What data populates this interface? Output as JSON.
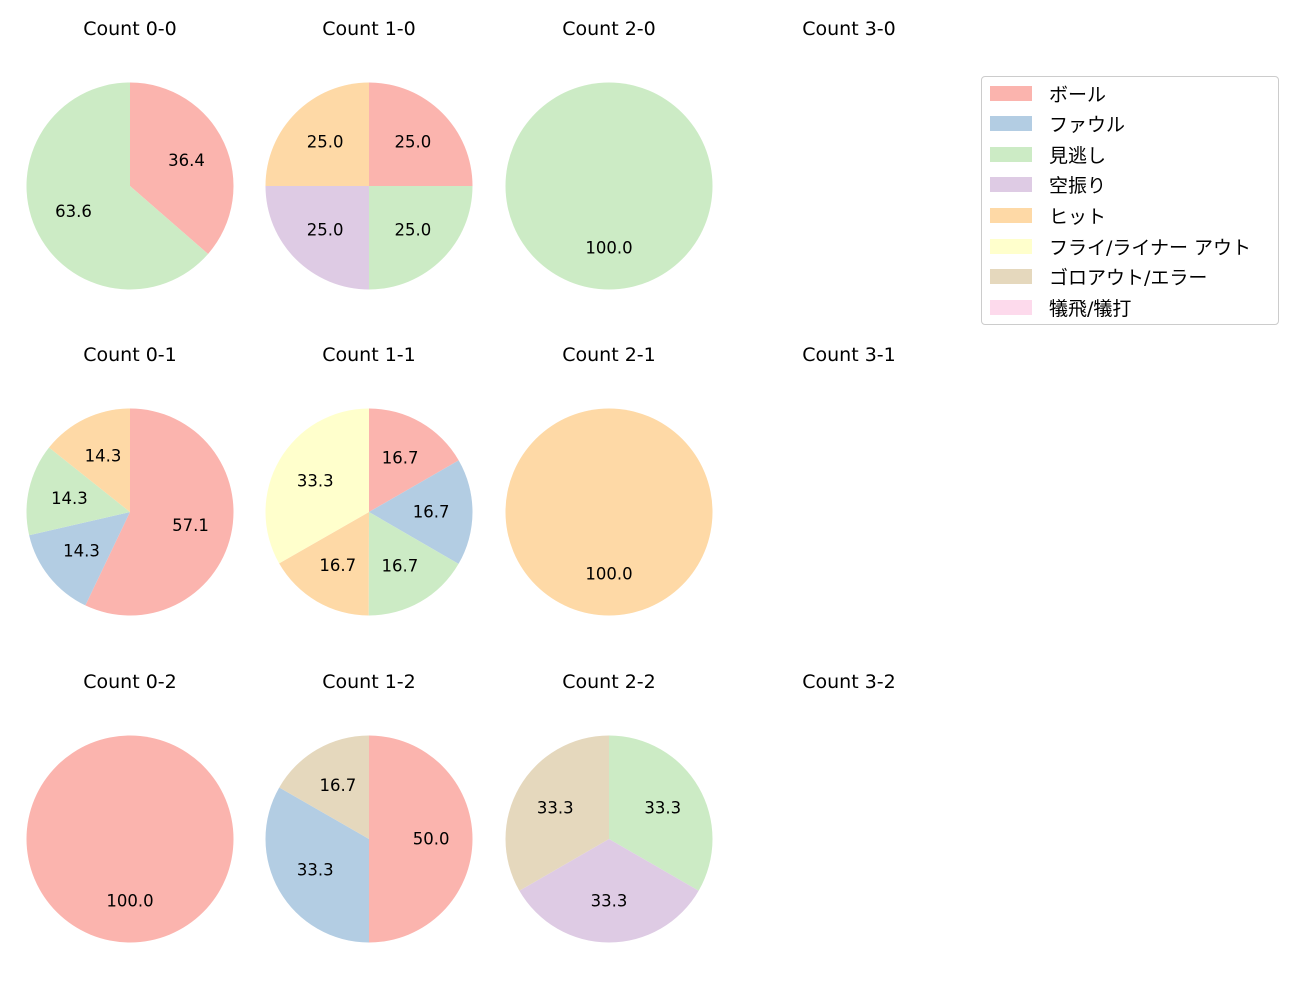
{
  "chart_data": [
    {
      "type": "pie",
      "title": "Count 0-0",
      "slices": [
        {
          "label": "ボール",
          "value": 36.4
        },
        {
          "label": "見逃し",
          "value": 63.6
        }
      ]
    },
    {
      "type": "pie",
      "title": "Count 1-0",
      "slices": [
        {
          "label": "ボール",
          "value": 25.0
        },
        {
          "label": "見逃し",
          "value": 25.0
        },
        {
          "label": "空振り",
          "value": 25.0
        },
        {
          "label": "ヒット",
          "value": 25.0
        }
      ]
    },
    {
      "type": "pie",
      "title": "Count 2-0",
      "slices": [
        {
          "label": "見逃し",
          "value": 100.0
        }
      ]
    },
    {
      "type": "pie",
      "title": "Count 3-0",
      "slices": []
    },
    {
      "type": "pie",
      "title": "Count 0-1",
      "slices": [
        {
          "label": "ボール",
          "value": 57.1
        },
        {
          "label": "ファウル",
          "value": 14.3
        },
        {
          "label": "見逃し",
          "value": 14.3
        },
        {
          "label": "ヒット",
          "value": 14.3
        }
      ]
    },
    {
      "type": "pie",
      "title": "Count 1-1",
      "slices": [
        {
          "label": "ボール",
          "value": 16.7
        },
        {
          "label": "ファウル",
          "value": 16.7
        },
        {
          "label": "見逃し",
          "value": 16.7
        },
        {
          "label": "ヒット",
          "value": 16.7
        },
        {
          "label": "フライ/ライナー アウト",
          "value": 33.3
        }
      ]
    },
    {
      "type": "pie",
      "title": "Count 2-1",
      "slices": [
        {
          "label": "ヒット",
          "value": 100.0
        }
      ]
    },
    {
      "type": "pie",
      "title": "Count 3-1",
      "slices": []
    },
    {
      "type": "pie",
      "title": "Count 0-2",
      "slices": [
        {
          "label": "ボール",
          "value": 100.0
        }
      ]
    },
    {
      "type": "pie",
      "title": "Count 1-2",
      "slices": [
        {
          "label": "ボール",
          "value": 50.0
        },
        {
          "label": "ファウル",
          "value": 33.3
        },
        {
          "label": "ゴロアウト/エラー",
          "value": 16.7
        }
      ]
    },
    {
      "type": "pie",
      "title": "Count 2-2",
      "slices": [
        {
          "label": "見逃し",
          "value": 33.3
        },
        {
          "label": "空振り",
          "value": 33.3
        },
        {
          "label": "ゴロアウト/エラー",
          "value": 33.3
        }
      ]
    },
    {
      "type": "pie",
      "title": "Count 3-2",
      "slices": []
    }
  ],
  "legend": {
    "placement": "top-right",
    "items": [
      {
        "label": "ボール",
        "color": "#fbb4ae"
      },
      {
        "label": "ファウル",
        "color": "#b3cde3"
      },
      {
        "label": "見逃し",
        "color": "#ccebc5"
      },
      {
        "label": "空振り",
        "color": "#decbe4"
      },
      {
        "label": "ヒット",
        "color": "#fed9a6"
      },
      {
        "label": "フライ/ライナー アウト",
        "color": "#ffffcc"
      },
      {
        "label": "ゴロアウト/エラー",
        "color": "#e5d8bd"
      },
      {
        "label": "犠飛/犠打",
        "color": "#fddaec"
      }
    ]
  }
}
